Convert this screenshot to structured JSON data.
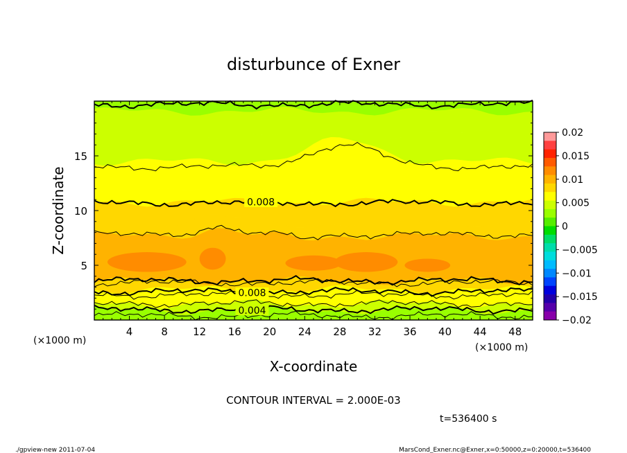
{
  "chart_data": {
    "type": "contour",
    "title": "disturbunce of Exner",
    "xlabel": "X-coordinate",
    "ylabel": "Z-coordinate",
    "x_unit_left": "(×1000 m)",
    "x_unit_right": "(×1000 m)",
    "xlim": [
      0,
      50
    ],
    "ylim": [
      0,
      20
    ],
    "x_ticks": [
      4,
      8,
      12,
      16,
      20,
      24,
      28,
      32,
      36,
      40,
      44,
      48
    ],
    "x_tick_labels": [
      "4",
      "8",
      "12",
      "16",
      "20",
      "24",
      "28",
      "32",
      "36",
      "40",
      "44",
      "48"
    ],
    "y_ticks": [
      5,
      10,
      15
    ],
    "y_tick_labels": [
      "5",
      "10",
      "15"
    ],
    "contour_labels": [
      {
        "text": "0.008",
        "x": 19,
        "z": 10.8
      },
      {
        "text": "0.008",
        "x": 18,
        "z": 2.5
      },
      {
        "text": "0.004",
        "x": 18,
        "z": 0.9
      }
    ],
    "bands": [
      {
        "z_bottom": 0.0,
        "z_top": 0.3,
        "value": 0.002
      },
      {
        "z_bottom": 0.3,
        "z_top": 0.9,
        "value": 0.003
      },
      {
        "z_bottom": 0.9,
        "z_top": 1.5,
        "value": 0.005
      },
      {
        "z_bottom": 1.5,
        "z_top": 2.1,
        "value": 0.006
      },
      {
        "z_bottom": 2.1,
        "z_top": 2.8,
        "value": 0.007
      },
      {
        "z_bottom": 2.8,
        "z_top": 3.3,
        "value": 0.008
      },
      {
        "z_bottom": 3.3,
        "z_top": 3.6,
        "value": 0.009
      },
      {
        "z_bottom": 3.6,
        "z_top": 7.7,
        "value": 0.01
      },
      {
        "z_bottom": 7.7,
        "z_top": 8.9,
        "value": 0.009
      },
      {
        "z_bottom": 8.9,
        "z_top": 10.8,
        "value": 0.008
      },
      {
        "z_bottom": 10.8,
        "z_top": 11.8,
        "value": 0.007
      },
      {
        "z_bottom": 11.8,
        "z_top": 14.5,
        "value": 0.006
      },
      {
        "z_bottom": 14.5,
        "z_top": 17.0,
        "value": 0.005
      },
      {
        "z_bottom": 17.0,
        "z_top": 19.1,
        "value": 0.004
      },
      {
        "z_bottom": 19.1,
        "z_top": 20.0,
        "value": 0.003
      }
    ],
    "contour_lines": [
      {
        "z": 0.4,
        "value": 0.002,
        "bold": false
      },
      {
        "z": 0.95,
        "value": 0.004,
        "bold": true
      },
      {
        "z": 1.5,
        "value": 0.005,
        "bold": false
      },
      {
        "z": 2.3,
        "value": 0.006,
        "bold": false
      },
      {
        "z": 2.6,
        "value": 0.008,
        "bold": true
      },
      {
        "z": 3.4,
        "value": 0.009,
        "bold": false
      },
      {
        "z": 3.6,
        "value": 0.01,
        "bold": true
      },
      {
        "z": 7.8,
        "value": 0.009,
        "bold": false
      },
      {
        "z": 10.7,
        "value": 0.008,
        "bold": true
      },
      {
        "z": 14.0,
        "value": 0.006,
        "bold": false
      },
      {
        "z": 19.7,
        "value": 0.004,
        "bold": true
      }
    ],
    "colorbar": {
      "min": -0.02,
      "max": 0.02,
      "tick_labels": [
        "0.02",
        "0.015",
        "0.01",
        "0.005",
        "0",
        "−0.005",
        "−0.01",
        "−0.015",
        "−0.02"
      ],
      "tick_values": [
        0.02,
        0.015,
        0.01,
        0.005,
        0,
        -0.005,
        -0.01,
        -0.015,
        -0.02
      ],
      "colors": [
        "#ff9a9a",
        "#ff4040",
        "#ff2200",
        "#ff5a00",
        "#ff8c00",
        "#ffb300",
        "#ffd700",
        "#ffff00",
        "#ccff00",
        "#99ff00",
        "#55ee00",
        "#00dd00",
        "#00dd66",
        "#00ddaa",
        "#00dddd",
        "#00bbff",
        "#0088ff",
        "#0044ff",
        "#0000dd",
        "#2200aa",
        "#5500aa",
        "#8800aa"
      ]
    },
    "contour_interval_text": "CONTOUR INTERVAL = 2.000E-03",
    "time_text": "t=536400 s"
  },
  "footer": {
    "left": "./gpview-new   2011-07-04",
    "right": "MarsCond_Exner.nc@Exner,x=0:50000,z=0:20000,t=536400"
  }
}
